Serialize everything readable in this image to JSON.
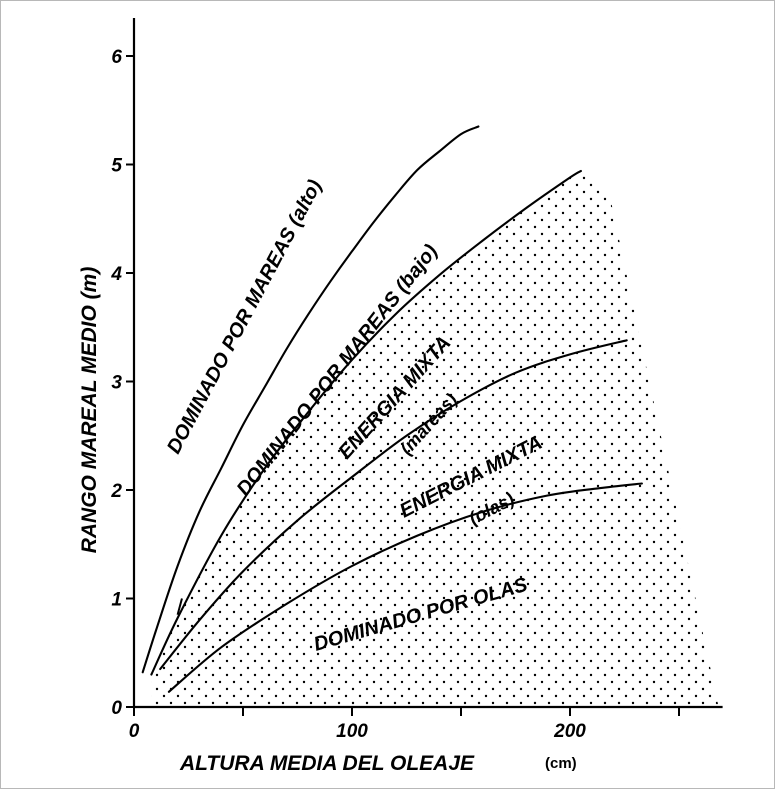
{
  "chart_data": {
    "type": "line",
    "xlabel": "ALTURA MEDIA DEL OLEAJE",
    "xunit": "(cm)",
    "ylabel": "RANGO MAREAL MEDIO (m)",
    "xlim": [
      0,
      270
    ],
    "ylim": [
      0,
      6.2
    ],
    "x_ticks": [
      0,
      50,
      100,
      150,
      200,
      250
    ],
    "x_tick_labels": [
      "0",
      "",
      "100",
      "",
      "200",
      ""
    ],
    "y_ticks": [
      0,
      1,
      2,
      3,
      4,
      5,
      6
    ],
    "y_tick_labels": [
      "0",
      "1",
      "2",
      "3",
      "4",
      "5",
      "6"
    ],
    "series": [
      {
        "x": [
          4,
          10,
          20,
          30,
          40,
          50,
          60,
          70,
          80,
          90,
          100,
          110,
          120,
          130,
          140,
          150,
          158
        ],
        "y": [
          0.32,
          0.7,
          1.3,
          1.8,
          2.2,
          2.6,
          2.95,
          3.3,
          3.62,
          3.92,
          4.2,
          4.47,
          4.72,
          4.95,
          5.12,
          5.28,
          5.35
        ]
      },
      {
        "x": [
          8,
          20,
          40,
          60,
          80,
          100,
          120,
          140,
          160,
          180,
          200,
          205
        ],
        "y": [
          0.3,
          0.82,
          1.58,
          2.2,
          2.72,
          3.2,
          3.62,
          3.98,
          4.3,
          4.6,
          4.88,
          4.94
        ]
      },
      {
        "x": [
          12,
          30,
          50,
          75,
          100,
          125,
          150,
          175,
          200,
          226
        ],
        "y": [
          0.35,
          0.8,
          1.25,
          1.72,
          2.12,
          2.5,
          2.82,
          3.08,
          3.25,
          3.38
        ]
      },
      {
        "x": [
          16,
          40,
          70,
          100,
          130,
          160,
          190,
          215,
          233
        ],
        "y": [
          0.14,
          0.55,
          0.95,
          1.3,
          1.58,
          1.8,
          1.95,
          2.02,
          2.06
        ]
      }
    ],
    "region_labels": [
      {
        "text": "DOMINADO POR MAREAS (alto)"
      },
      {
        "text": "DOMINADO POR MAREAS (bajo)"
      },
      {
        "text": "ENERGIA MIXTA",
        "sub": "(mareas)"
      },
      {
        "text": "ENERGIA MIXTA",
        "sub": "(olas)"
      },
      {
        "text": "DOMINADO POR OLAS"
      }
    ],
    "grid": false,
    "line_color": "#000000",
    "stipple_color": "#000000"
  }
}
